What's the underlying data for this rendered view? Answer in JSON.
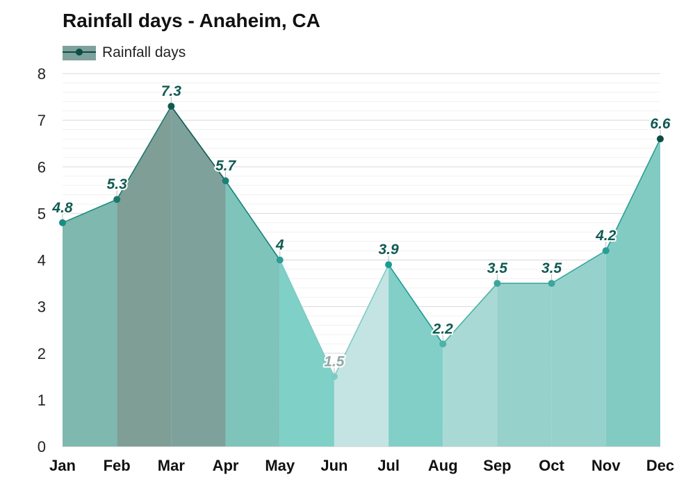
{
  "chart_data": {
    "type": "area",
    "title": "Rainfall days - Anaheim, CA",
    "categories": [
      "Jan",
      "Feb",
      "Mar",
      "Apr",
      "May",
      "Jun",
      "Jul",
      "Aug",
      "Sep",
      "Oct",
      "Nov",
      "Dec"
    ],
    "series": [
      {
        "name": "Rainfall days",
        "values": [
          4.8,
          5.3,
          7.3,
          5.7,
          4,
          1.5,
          3.9,
          2.2,
          3.5,
          3.5,
          4.2,
          6.6
        ]
      }
    ],
    "data_labels": [
      "4.8",
      "5.3",
      "7.3",
      "5.7",
      "4",
      "1.5",
      "3.9",
      "2.2",
      "3.5",
      "3.5",
      "4.2",
      "6.6"
    ],
    "y_ticks": [
      "0",
      "1",
      "2",
      "3",
      "4",
      "5",
      "6",
      "7",
      "8"
    ],
    "ylim": [
      0,
      8
    ],
    "xlabel": "",
    "ylabel": "",
    "legend": "top-left",
    "grid": true
  },
  "colors": {
    "band_fills": [
      "#7fb8ae",
      "#7f9e96",
      "#7fa19b",
      "#7fc4bb",
      "#7fd0c7",
      "#c3e4e3",
      "#82cfc7",
      "#a9d9d4",
      "#96d1cb",
      "#96d1cb",
      "#82cbc3",
      "#7fa19b"
    ],
    "point_colors": [
      "#1a8d83",
      "#1e7870",
      "#105a52",
      "#16827a",
      "#2a9e94",
      "#7ecbc3",
      "#1b9d93",
      "#4eb2a8",
      "#3aa69c",
      "#3aa69c",
      "#2a9e94",
      "#0c4c46"
    ],
    "label_color": "#105a52",
    "label_color_light": "#8fa7a3",
    "legend_swatch": "#7fa19b",
    "legend_line": "#0c4c46",
    "grid": "#e6e6e6"
  }
}
